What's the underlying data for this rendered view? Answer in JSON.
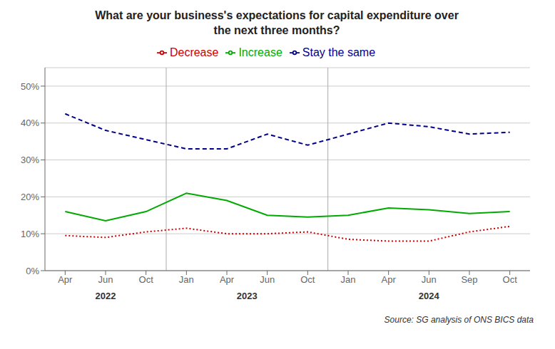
{
  "chart_data": {
    "type": "line",
    "title": "What are your business's expectations for capital expenditure over\nthe next three months?",
    "source": "Source: SG analysis of ONS BICS data",
    "categories": [
      "Apr",
      "Jun",
      "Oct",
      "Jan",
      "Apr",
      "Jun",
      "Oct",
      "Jan",
      "Apr",
      "Jun",
      "Sep",
      "Oct"
    ],
    "category_groups": [
      {
        "label": "2022",
        "size": 3
      },
      {
        "label": "2023",
        "size": 4
      },
      {
        "label": "2024",
        "size": 5
      }
    ],
    "series": [
      {
        "name": "Increase",
        "color": "#00AA00",
        "line_style": "solid",
        "values": [
          16,
          13.5,
          16,
          21,
          19,
          15,
          14.5,
          15,
          17,
          16.5,
          15.5,
          16
        ]
      },
      {
        "name": "Stay the same",
        "color": "#00008B",
        "line_style": "dashed",
        "values": [
          42.5,
          38,
          35.5,
          33,
          33,
          37,
          34,
          37,
          40,
          39,
          37,
          37.5
        ]
      },
      {
        "name": "Decrease",
        "color": "#CC0000",
        "line_style": "dotted",
        "values": [
          9.5,
          9,
          10.5,
          11.5,
          10,
          10,
          10.5,
          8.5,
          8,
          8,
          10.5,
          12
        ]
      }
    ],
    "ylim": [
      0,
      55
    ],
    "yticks": [
      {
        "value": 0,
        "label": "0%"
      },
      {
        "value": 10,
        "label": "10%"
      },
      {
        "value": 20,
        "label": "20%"
      },
      {
        "value": 30,
        "label": "30%"
      },
      {
        "value": 40,
        "label": "40%"
      },
      {
        "value": 50,
        "label": "50%"
      }
    ],
    "grid": true,
    "legend": "top",
    "marker": "none"
  }
}
